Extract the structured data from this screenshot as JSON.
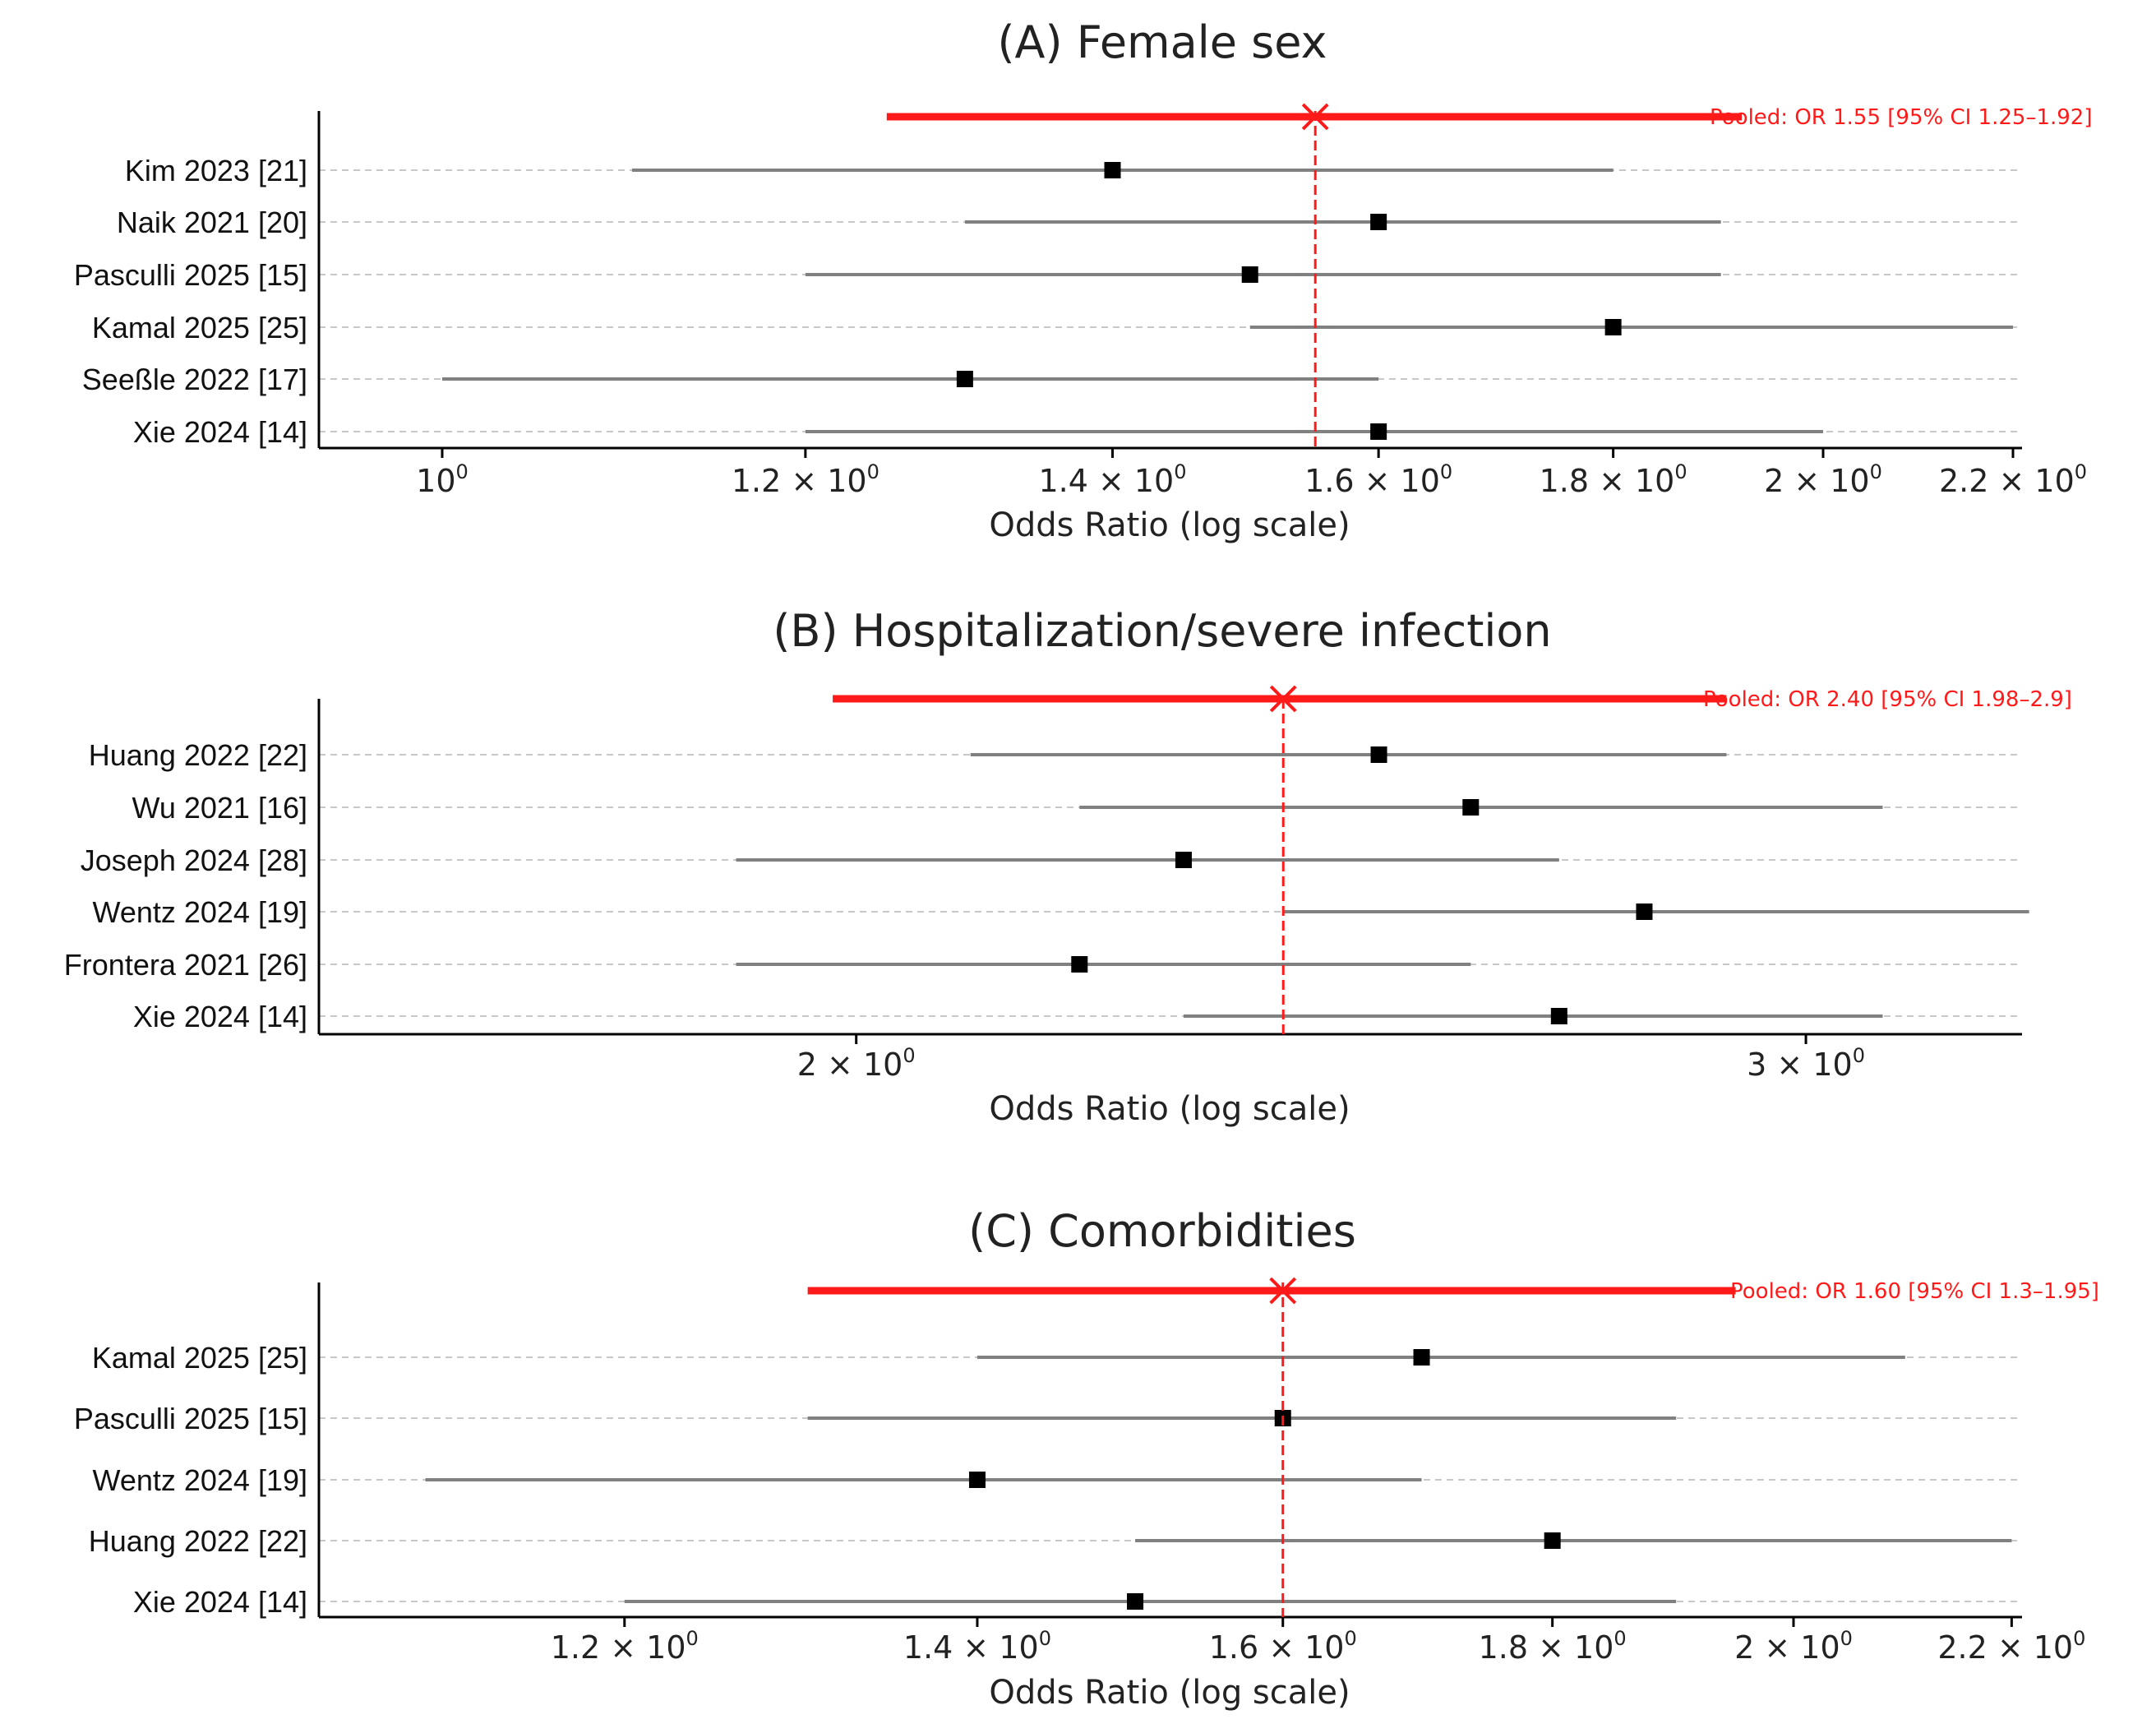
{
  "colors": {
    "pooled": "#ff1a1a",
    "ci_line": "#808080",
    "point": "#000000",
    "grid": "#c8c8c8",
    "axis": "#000000"
  },
  "chart_data": [
    {
      "type": "forest",
      "title": "(A) Female sex",
      "xlabel": "Odds Ratio (log scale)",
      "xscale": "log",
      "xlim": [
        0.94,
        2.21
      ],
      "ticks": [
        {
          "value": 1.0,
          "base": "10",
          "exp": "0"
        },
        {
          "value": 1.2,
          "base": "1.2 × 10",
          "exp": "0"
        },
        {
          "value": 1.4,
          "base": "1.4 × 10",
          "exp": "0"
        },
        {
          "value": 1.6,
          "base": "1.6 × 10",
          "exp": "0"
        },
        {
          "value": 1.8,
          "base": "1.8 × 10",
          "exp": "0"
        },
        {
          "value": 2.0,
          "base": "2 × 10",
          "exp": "0"
        },
        {
          "value": 2.2,
          "base": "2.2 × 10",
          "exp": "0"
        }
      ],
      "pooled": {
        "or": 1.55,
        "low": 1.25,
        "high": 1.92,
        "label": "Pooled: OR 1.55 [95% CI 1.25–1.92]"
      },
      "studies": [
        {
          "label": "Kim 2023 [21]",
          "or": 1.4,
          "low": 1.1,
          "high": 1.8
        },
        {
          "label": "Naik 2021 [20]",
          "or": 1.6,
          "low": 1.3,
          "high": 1.9
        },
        {
          "label": "Pasculli 2025 [15]",
          "or": 1.5,
          "low": 1.2,
          "high": 1.9
        },
        {
          "label": "Kamal 2025 [25]",
          "or": 1.8,
          "low": 1.5,
          "high": 2.2
        },
        {
          "label": "Seeßle 2022 [17]",
          "or": 1.3,
          "low": 1.0,
          "high": 1.6
        },
        {
          "label": "Xie 2024 [14]",
          "or": 1.6,
          "low": 1.2,
          "high": 2.0
        }
      ]
    },
    {
      "type": "forest",
      "title": "(B) Hospitalization/severe infection",
      "xlabel": "Odds Ratio (log scale)",
      "xscale": "log",
      "xlim": [
        1.59,
        3.29
      ],
      "ticks": [
        {
          "value": 2.0,
          "base": "2 × 10",
          "exp": "0"
        },
        {
          "value": 3.0,
          "base": "3 × 10",
          "exp": "0"
        }
      ],
      "pooled": {
        "or": 2.4,
        "low": 1.98,
        "high": 2.9,
        "label": "Pooled: OR 2.40 [95% CI 1.98–2.9]"
      },
      "studies": [
        {
          "label": "Huang 2022 [22]",
          "or": 2.5,
          "low": 2.1,
          "high": 2.9
        },
        {
          "label": "Wu 2021 [16]",
          "or": 2.6,
          "low": 2.2,
          "high": 3.1
        },
        {
          "label": "Joseph 2024 [28]",
          "or": 2.3,
          "low": 1.9,
          "high": 2.7
        },
        {
          "label": "Wentz 2024 [19]",
          "or": 2.8,
          "low": 2.4,
          "high": 3.3
        },
        {
          "label": "Frontera 2021 [26]",
          "or": 2.2,
          "low": 1.9,
          "high": 2.6
        },
        {
          "label": "Xie 2024 [14]",
          "or": 2.7,
          "low": 2.3,
          "high": 3.1
        }
      ]
    },
    {
      "type": "forest",
      "title": "(C) Comorbidities",
      "xlabel": "Odds Ratio (log scale)",
      "xscale": "log",
      "xlim": [
        1.05,
        2.21
      ],
      "ticks": [
        {
          "value": 1.2,
          "base": "1.2 × 10",
          "exp": "0"
        },
        {
          "value": 1.4,
          "base": "1.4 × 10",
          "exp": "0"
        },
        {
          "value": 1.6,
          "base": "1.6 × 10",
          "exp": "0"
        },
        {
          "value": 1.8,
          "base": "1.8 × 10",
          "exp": "0"
        },
        {
          "value": 2.0,
          "base": "2 × 10",
          "exp": "0"
        },
        {
          "value": 2.2,
          "base": "2.2 × 10",
          "exp": "0"
        }
      ],
      "pooled": {
        "or": 1.6,
        "low": 1.3,
        "high": 1.95,
        "label": "Pooled: OR 1.60 [95% CI 1.3–1.95]"
      },
      "studies": [
        {
          "label": "Kamal 2025 [25]",
          "or": 1.7,
          "low": 1.4,
          "high": 2.1
        },
        {
          "label": "Pasculli 2025 [15]",
          "or": 1.6,
          "low": 1.3,
          "high": 1.9
        },
        {
          "label": "Wentz 2024 [19]",
          "or": 1.4,
          "low": 1.1,
          "high": 1.7
        },
        {
          "label": "Huang 2022 [22]",
          "or": 1.8,
          "low": 1.5,
          "high": 2.2
        },
        {
          "label": "Xie 2024 [14]",
          "or": 1.5,
          "low": 1.2,
          "high": 1.9
        }
      ]
    }
  ]
}
